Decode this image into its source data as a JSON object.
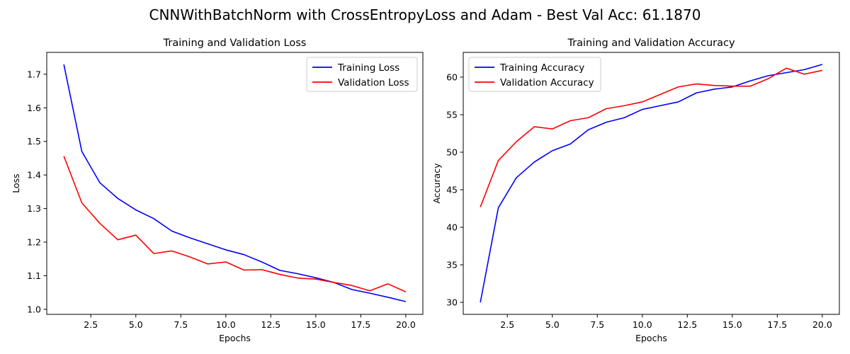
{
  "figure": {
    "suptitle": "CNNWithBatchNorm with CrossEntropyLoss and Adam - Best Val Acc: 61.1870"
  },
  "chart_data": [
    {
      "type": "line",
      "title": "Training and Validation Loss",
      "xlabel": "Epochs",
      "ylabel": "Loss",
      "xlim": [
        0.05,
        20.95
      ],
      "ylim": [
        0.985,
        1.765
      ],
      "xticks": [
        "2.5",
        "5.0",
        "7.5",
        "10.0",
        "12.5",
        "15.0",
        "17.5",
        "20.0"
      ],
      "yticks": [
        "1.0",
        "1.1",
        "1.2",
        "1.3",
        "1.4",
        "1.5",
        "1.6",
        "1.7"
      ],
      "legend": "top-right",
      "grid": false,
      "x": [
        1,
        2,
        3,
        4,
        5,
        6,
        7,
        8,
        9,
        10,
        11,
        12,
        13,
        14,
        15,
        16,
        17,
        18,
        19,
        20
      ],
      "series": [
        {
          "name": "Training Loss",
          "color": "#0000ff",
          "values": [
            1.729,
            1.47,
            1.377,
            1.33,
            1.296,
            1.27,
            1.233,
            1.213,
            1.195,
            1.177,
            1.163,
            1.141,
            1.116,
            1.106,
            1.094,
            1.08,
            1.059,
            1.048,
            1.036,
            1.023
          ]
        },
        {
          "name": "Validation Loss",
          "color": "#ff0000",
          "values": [
            1.456,
            1.317,
            1.256,
            1.207,
            1.221,
            1.166,
            1.174,
            1.156,
            1.135,
            1.141,
            1.117,
            1.118,
            1.104,
            1.093,
            1.09,
            1.08,
            1.071,
            1.055,
            1.076,
            1.052
          ]
        }
      ]
    },
    {
      "type": "line",
      "title": "Training and Validation Accuracy",
      "xlabel": "Epochs",
      "ylabel": "Accuracy",
      "xlim": [
        0.05,
        20.95
      ],
      "ylim": [
        28.4,
        63.3
      ],
      "xticks": [
        "2.5",
        "5.0",
        "7.5",
        "10.0",
        "12.5",
        "15.0",
        "17.5",
        "20.0"
      ],
      "yticks": [
        "30",
        "35",
        "40",
        "45",
        "50",
        "55",
        "60"
      ],
      "legend": "top-left",
      "grid": false,
      "x": [
        1,
        2,
        3,
        4,
        5,
        6,
        7,
        8,
        9,
        10,
        11,
        12,
        13,
        14,
        15,
        16,
        17,
        18,
        19,
        20
      ],
      "series": [
        {
          "name": "Training Accuracy",
          "color": "#0000ff",
          "values": [
            30.0,
            42.6,
            46.6,
            48.7,
            50.2,
            51.1,
            53.0,
            54.0,
            54.6,
            55.7,
            56.2,
            56.7,
            57.9,
            58.4,
            58.7,
            59.5,
            60.2,
            60.6,
            61.0,
            61.7
          ]
        },
        {
          "name": "Validation Accuracy",
          "color": "#ff0000",
          "values": [
            42.7,
            48.9,
            51.4,
            53.4,
            53.1,
            54.2,
            54.6,
            55.8,
            56.2,
            56.7,
            57.7,
            58.7,
            59.1,
            58.9,
            58.8,
            58.8,
            59.8,
            61.2,
            60.4,
            60.9
          ]
        }
      ]
    }
  ]
}
